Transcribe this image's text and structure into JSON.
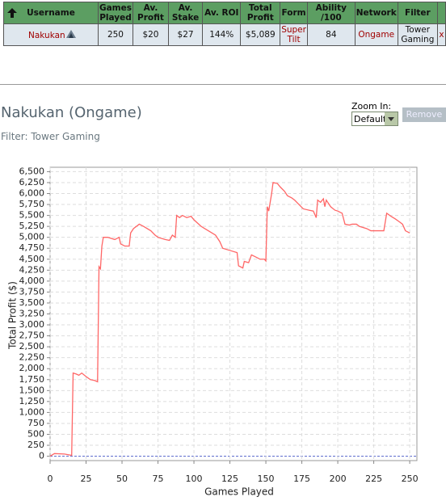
{
  "table": {
    "columns": [
      "Username",
      "Games Played",
      "Av. Profit",
      "Av. Stake",
      "Av. ROI",
      "Total Profit",
      "Form",
      "Ability /100",
      "Network",
      "Filter"
    ],
    "rows": [
      [
        "Nakukan",
        "250",
        "$20",
        "$27",
        "144%",
        "$5,089",
        "Super Tilt",
        "84",
        "Ongame",
        "Tower Gaming",
        "x"
      ]
    ]
  },
  "header": {
    "title": "Nakukan (Ongame)",
    "filter": "Filter: Tower Gaming"
  },
  "controls": {
    "zoom_label": "Zoom In:",
    "zoom_value": "Default",
    "remove": "Remove"
  },
  "chart_data": {
    "type": "line",
    "color": "#ff6666",
    "x_label": "Games Played",
    "y_label": "Total Profit ($)",
    "x": [
      0,
      3,
      10,
      15,
      16,
      18,
      20,
      22,
      25,
      28,
      31,
      33,
      34,
      35,
      36,
      37,
      40,
      45,
      48,
      49,
      52,
      55,
      56,
      58,
      62,
      65,
      70,
      73,
      75,
      80,
      83,
      85,
      87,
      88,
      90,
      92,
      95,
      98,
      100,
      105,
      110,
      115,
      118,
      120,
      125,
      130,
      131,
      134,
      135,
      138,
      140,
      143,
      146,
      149,
      150,
      151,
      152,
      154,
      155,
      158,
      160,
      163,
      165,
      168,
      170,
      173,
      176,
      180,
      183,
      185,
      186,
      188,
      190,
      191,
      192,
      195,
      198,
      200,
      203,
      205,
      208,
      210,
      213,
      215,
      220,
      223,
      225,
      230,
      232,
      234,
      237,
      240,
      243,
      245,
      247,
      250
    ],
    "values": [
      0,
      60,
      50,
      20,
      1900,
      1880,
      1850,
      1900,
      1820,
      1750,
      1730,
      1700,
      4330,
      4280,
      4800,
      5000,
      5000,
      4950,
      5000,
      4850,
      4800,
      4800,
      5100,
      5200,
      5300,
      5250,
      5150,
      5050,
      5000,
      4950,
      4930,
      5050,
      5000,
      5500,
      5450,
      5500,
      5450,
      5480,
      5400,
      5250,
      5150,
      5050,
      4900,
      4750,
      4700,
      4650,
      4350,
      4300,
      4450,
      4420,
      4600,
      4550,
      4500,
      4500,
      4460,
      5700,
      5600,
      6000,
      6250,
      6230,
      6150,
      6050,
      5950,
      5900,
      5850,
      5750,
      5650,
      5620,
      5600,
      5450,
      5850,
      5800,
      5880,
      5700,
      5850,
      5700,
      5620,
      5600,
      5550,
      5300,
      5280,
      5300,
      5300,
      5250,
      5200,
      5150,
      5150,
      5150,
      5150,
      5550,
      5480,
      5420,
      5350,
      5300,
      5150,
      5100
    ],
    "xlim": [
      0,
      255
    ],
    "ylim": [
      -100,
      6600
    ],
    "xticks": [
      0,
      25,
      50,
      75,
      100,
      125,
      150,
      175,
      200,
      225,
      250
    ],
    "yticks": [
      0,
      250,
      500,
      750,
      {
        "value": 1000,
        "label": "1,000"
      },
      {
        "value": 1250,
        "label": "1,250"
      },
      {
        "value": 1500,
        "label": "1,500"
      },
      {
        "value": 1750,
        "label": "1,750"
      },
      {
        "value": 2000,
        "label": "2,000"
      },
      {
        "value": 2250,
        "label": "2,250"
      },
      {
        "value": 2500,
        "label": "2,500"
      },
      {
        "value": 2750,
        "label": "2,750"
      },
      {
        "value": 3000,
        "label": "3,000"
      },
      {
        "value": 3250,
        "label": "3,250"
      },
      {
        "value": 3500,
        "label": "3,500"
      },
      {
        "value": 3750,
        "label": "3,750"
      },
      {
        "value": 4000,
        "label": "4,000"
      },
      {
        "value": 4250,
        "label": "4,250"
      },
      {
        "value": 4500,
        "label": "4,500"
      },
      {
        "value": 4750,
        "label": "4,750"
      },
      {
        "value": 5000,
        "label": "5,000"
      },
      {
        "value": 5250,
        "label": "5,250"
      },
      {
        "value": 5500,
        "label": "5,500"
      },
      {
        "value": 5750,
        "label": "5,750"
      },
      {
        "value": 6000,
        "label": "6,000"
      },
      {
        "value": 6250,
        "label": "6,250"
      },
      {
        "value": 6500,
        "label": "6,500"
      }
    ],
    "grid": true
  }
}
